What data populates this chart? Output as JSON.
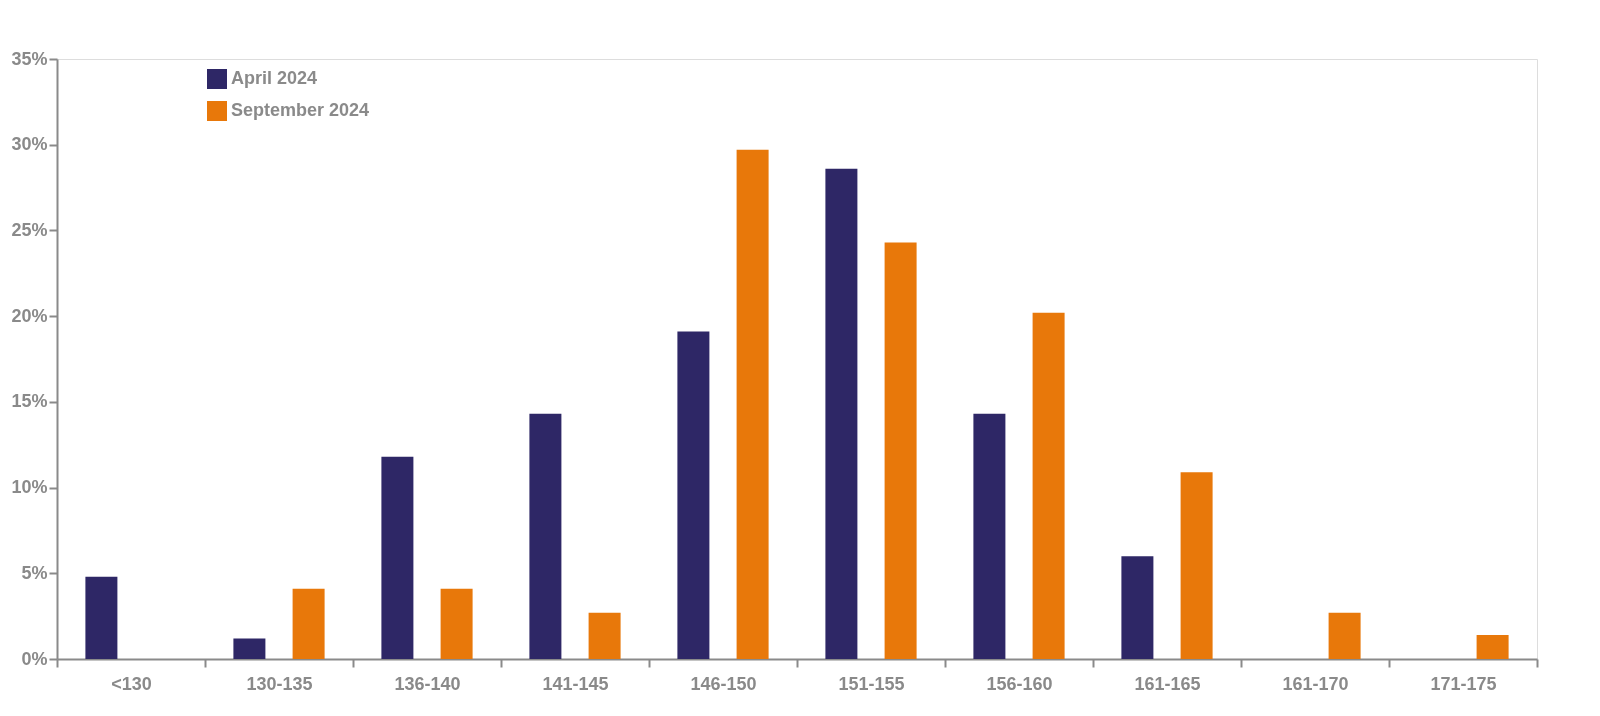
{
  "chart_data": {
    "type": "bar",
    "categories": [
      "<130",
      "130-135",
      "136-140",
      "141-145",
      "146-150",
      "151-155",
      "156-160",
      "161-165",
      "161-170",
      "171-175"
    ],
    "series": [
      {
        "name": "April 2024",
        "color": "#2e2766",
        "values": [
          4.8,
          1.2,
          11.8,
          14.3,
          19.1,
          28.6,
          14.3,
          6.0,
          null,
          null
        ]
      },
      {
        "name": "September 2024",
        "color": "#e8780a",
        "values": [
          null,
          4.1,
          4.1,
          2.7,
          29.7,
          24.3,
          20.2,
          10.9,
          2.7,
          1.4
        ]
      }
    ],
    "ylim": [
      0,
      35
    ],
    "yticks": [
      {
        "value": 0,
        "label": "0%"
      },
      {
        "value": 5,
        "label": "5%"
      },
      {
        "value": 10,
        "label": "10%"
      },
      {
        "value": 15,
        "label": "15%"
      },
      {
        "value": 20,
        "label": "20%"
      },
      {
        "value": 25,
        "label": "25%"
      },
      {
        "value": 30,
        "label": "30%"
      },
      {
        "value": 35,
        "label": "35%"
      }
    ],
    "grid": false,
    "legend": "top left"
  }
}
